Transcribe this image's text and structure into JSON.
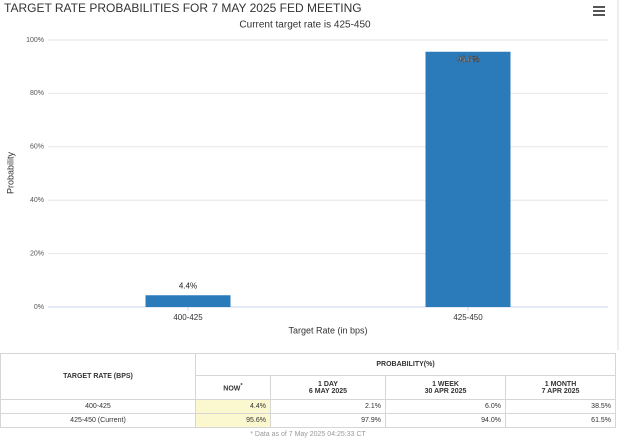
{
  "chart_data": {
    "type": "bar",
    "title": "TARGET RATE PROBABILITIES FOR 7 MAY 2025 FED MEETING",
    "subtitle": "Current target rate is 425-450",
    "x_label": "Target Rate (in bps)",
    "y_label": "Probability",
    "categories": [
      "400-425",
      "425-450"
    ],
    "values": [
      4.4,
      95.6
    ],
    "value_labels": [
      "4.4%",
      "95.6%"
    ],
    "color": "#2b7bba",
    "ylim": [
      0,
      100
    ],
    "yticks": [
      {
        "value": 0,
        "label": "0%"
      },
      {
        "value": 20,
        "label": "20%"
      },
      {
        "value": 40,
        "label": "40%"
      },
      {
        "value": 60,
        "label": "60%"
      },
      {
        "value": 80,
        "label": "80%"
      },
      {
        "value": 100,
        "label": "100%"
      }
    ],
    "grid": true
  },
  "table": {
    "first_header": "TARGET RATE (BPS)",
    "group_header": "PROBABILITY(%)",
    "columns": [
      {
        "title": "NOW",
        "mark": "*"
      },
      {
        "title": "1 DAY",
        "date": "6 MAY 2025"
      },
      {
        "title": "1 WEEK",
        "date": "30 APR 2025"
      },
      {
        "title": "1 MONTH",
        "date": "7 APR 2025"
      }
    ],
    "rows": [
      [
        "400-425",
        "4.4%",
        "2.1%",
        "6.0%",
        "38.5%"
      ],
      [
        "425-450 (Current)",
        "95.6%",
        "97.9%",
        "94.0%",
        "61.5%"
      ]
    ],
    "footnote": "* Data as of 7 May 2025 04:25:33 CT"
  }
}
